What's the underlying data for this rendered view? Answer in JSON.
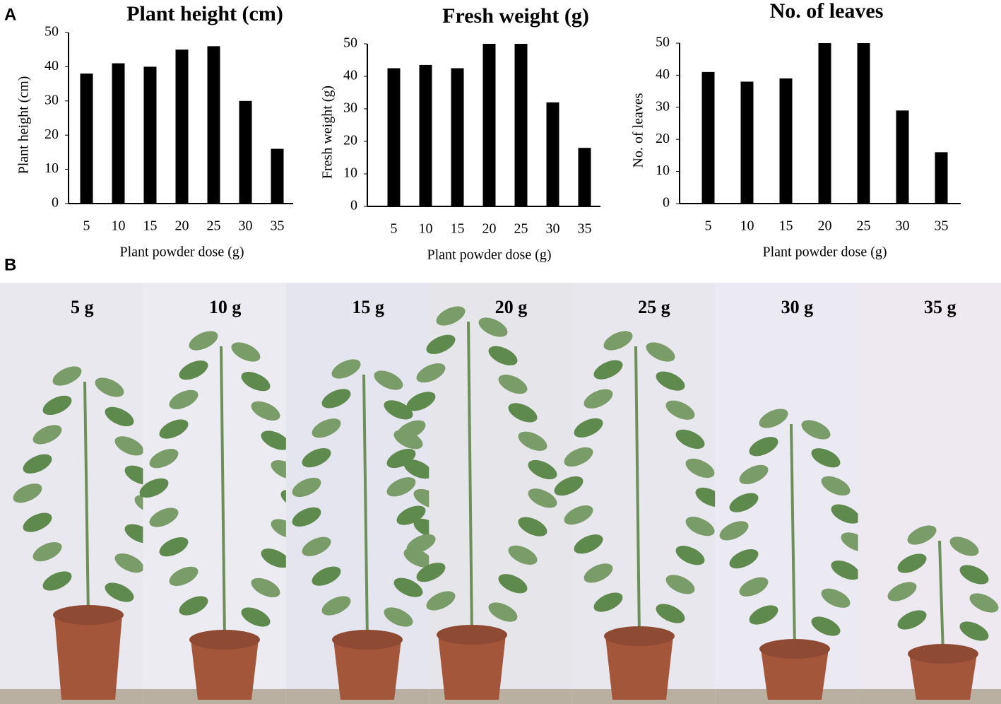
{
  "panel_labels": [
    "A",
    "B"
  ],
  "chart_data": [
    {
      "type": "bar",
      "title": "Plant height (cm)",
      "y_label": "Plant height (cm)",
      "x_label": "Plant powder dose (g)",
      "categories": [
        "5",
        "10",
        "15",
        "20",
        "25",
        "30",
        "35"
      ],
      "values": [
        38,
        41,
        40,
        45,
        46,
        30,
        16
      ],
      "color": "#000000",
      "ylim": [
        0,
        50
      ],
      "yticks": [
        0,
        10,
        20,
        30,
        40,
        50
      ],
      "grid": false
    },
    {
      "type": "bar",
      "title": "Fresh weight (g)",
      "y_label": "Fresh weight (g)",
      "x_label": "Plant powder dose (g)",
      "categories": [
        "5",
        "10",
        "15",
        "20",
        "25",
        "30",
        "35"
      ],
      "values": [
        42.5,
        43.5,
        42.5,
        50,
        50,
        32,
        18
      ],
      "color": "#000000",
      "ylim": [
        0,
        50
      ],
      "yticks": [
        0,
        10,
        20,
        30,
        40,
        50
      ],
      "grid": false
    },
    {
      "type": "bar",
      "title": "No. of leaves",
      "y_label": "No. of leaves",
      "x_label": "Plant powder dose (g)",
      "categories": [
        "5",
        "10",
        "15",
        "20",
        "25",
        "30",
        "35"
      ],
      "values": [
        41,
        38,
        39,
        50,
        50,
        29,
        16
      ],
      "color": "#000000",
      "ylim": [
        0,
        50
      ],
      "yticks": [
        0,
        10,
        20,
        30,
        40,
        50
      ],
      "grid": false
    }
  ],
  "photo_labels": [
    "5 g",
    "10 g",
    "15 g",
    "20 g",
    "25 g",
    "30 g",
    "35 g"
  ]
}
